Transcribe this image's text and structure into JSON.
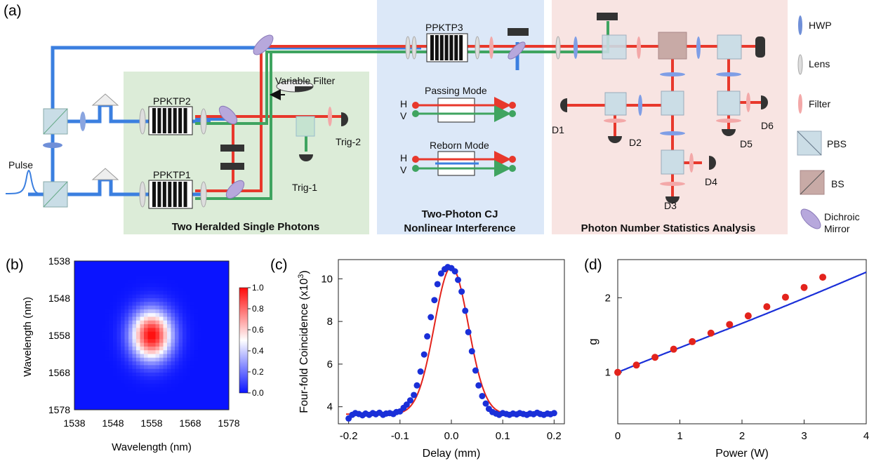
{
  "panel_a": {
    "label": "(a)",
    "crystals": {
      "ppktp1": "PPKTP1",
      "ppktp2": "PPKTP2",
      "ppktp3": "PPKTP3"
    },
    "pulse": "Pulse",
    "variable_filter": "Variable Filter",
    "triggers": {
      "trig1": "Trig-1",
      "trig2": "Trig-2"
    },
    "detectors": [
      "D1",
      "D2",
      "D3",
      "D4",
      "D5",
      "D6"
    ],
    "modes": {
      "passing": "Passing Mode",
      "reborn": "Reborn Mode",
      "h": "H",
      "v": "V"
    },
    "sections": {
      "heralded": "Two Heralded Single Photons",
      "cj_line1": "Two-Photon CJ",
      "cj_line2": "Nonlinear Interference",
      "statistics": "Photon Number Statistics Analysis"
    },
    "legend": [
      "HWP",
      "Lens",
      "Filter",
      "PBS",
      "BS",
      "Dichroic",
      "Mirror"
    ],
    "colors": {
      "pump": "#3b7fe0",
      "red_photon": "#e8382c",
      "green_photon": "#3fa460",
      "green_panel": "#dcecd8",
      "blue_panel": "#dce8f8",
      "pink_panel": "#f8e4e2"
    }
  },
  "panel_b": {
    "label": "(b)",
    "chart_data": {
      "type": "heatmap",
      "xlabel": "Wavelength (nm)",
      "ylabel": "Wavelength (nm)",
      "x_ticks": [
        "1538",
        "1548",
        "1558",
        "1568",
        "1578"
      ],
      "y_ticks": [
        "1538",
        "1548",
        "1558",
        "1568",
        "1578"
      ],
      "xlim": [
        1538,
        1578
      ],
      "ylim": [
        1538,
        1578
      ],
      "peak_center": [
        1558,
        1558
      ],
      "peak_sigma_nm": [
        3.6,
        4.6
      ],
      "colorbar_ticks": [
        "0.0",
        "0.2",
        "0.4",
        "0.6",
        "0.8",
        "1.0"
      ],
      "colorbar_range": [
        0,
        1
      ],
      "colormap": [
        "#0a14ff",
        "#ffffff",
        "#ff0a0a"
      ]
    }
  },
  "panel_c": {
    "label": "(c)",
    "chart_data": {
      "type": "scatter",
      "xlabel": "Delay (mm)",
      "ylabel": "Four-fold Coincidence (x10",
      "ylabel_sup": "3",
      "ylabel_end": ")",
      "xlim": [
        -0.22,
        0.22
      ],
      "ylim": [
        3.2,
        10.9
      ],
      "x_ticks": [
        "-0.2",
        "-0.1",
        "0.0",
        "0.1",
        "0.2"
      ],
      "y_ticks": [
        "4",
        "6",
        "8",
        "10"
      ],
      "fit": {
        "baseline": 3.65,
        "amplitude": 6.9,
        "center": 0.0,
        "sigma": 0.033
      },
      "x": [
        -0.2,
        -0.193,
        -0.187,
        -0.18,
        -0.173,
        -0.167,
        -0.16,
        -0.153,
        -0.147,
        -0.14,
        -0.133,
        -0.127,
        -0.12,
        -0.113,
        -0.107,
        -0.1,
        -0.093,
        -0.087,
        -0.08,
        -0.073,
        -0.067,
        -0.06,
        -0.053,
        -0.047,
        -0.04,
        -0.033,
        -0.027,
        -0.02,
        -0.013,
        -0.007,
        0.0,
        0.007,
        0.013,
        0.02,
        0.027,
        0.033,
        0.04,
        0.047,
        0.053,
        0.06,
        0.067,
        0.073,
        0.08,
        0.087,
        0.093,
        0.1,
        0.107,
        0.113,
        0.12,
        0.127,
        0.133,
        0.14,
        0.147,
        0.153,
        0.16,
        0.167,
        0.173,
        0.18,
        0.187,
        0.193,
        0.2
      ],
      "y": [
        3.45,
        3.62,
        3.7,
        3.66,
        3.6,
        3.68,
        3.62,
        3.7,
        3.65,
        3.72,
        3.62,
        3.68,
        3.7,
        3.66,
        3.75,
        3.78,
        3.95,
        4.1,
        4.3,
        4.55,
        5.0,
        5.65,
        6.45,
        7.3,
        8.2,
        9.0,
        9.75,
        10.25,
        10.45,
        10.55,
        10.5,
        10.35,
        9.95,
        9.4,
        8.5,
        7.5,
        6.6,
        5.7,
        5.0,
        4.5,
        4.15,
        3.9,
        3.75,
        3.68,
        3.62,
        3.7,
        3.66,
        3.62,
        3.68,
        3.64,
        3.7,
        3.66,
        3.62,
        3.68,
        3.65,
        3.72,
        3.66,
        3.62,
        3.68,
        3.65,
        3.7
      ],
      "point_color": "#1a2fd8",
      "line_color": "#e3231c"
    }
  },
  "panel_d": {
    "label": "(d)",
    "chart_data": {
      "type": "scatter",
      "xlabel": "Power (W)",
      "ylabel": "g",
      "xlim": [
        0,
        4
      ],
      "ylim_log": [
        0.62,
        2.85
      ],
      "log_y": true,
      "x_ticks": [
        "0",
        "1",
        "2",
        "3",
        "4"
      ],
      "y_ticks": [
        "1",
        "2"
      ],
      "x": [
        0,
        0.3,
        0.6,
        0.9,
        1.2,
        1.5,
        1.8,
        2.1,
        2.4,
        2.7,
        3.0,
        3.3
      ],
      "y": [
        1.0,
        1.07,
        1.15,
        1.24,
        1.33,
        1.44,
        1.56,
        1.69,
        1.84,
        2.01,
        2.2,
        2.42
      ],
      "fit": {
        "a": 1.0,
        "b": 0.24,
        "c": 0.012
      },
      "point_color": "#e3231c",
      "line_color": "#1a2fd8"
    }
  }
}
